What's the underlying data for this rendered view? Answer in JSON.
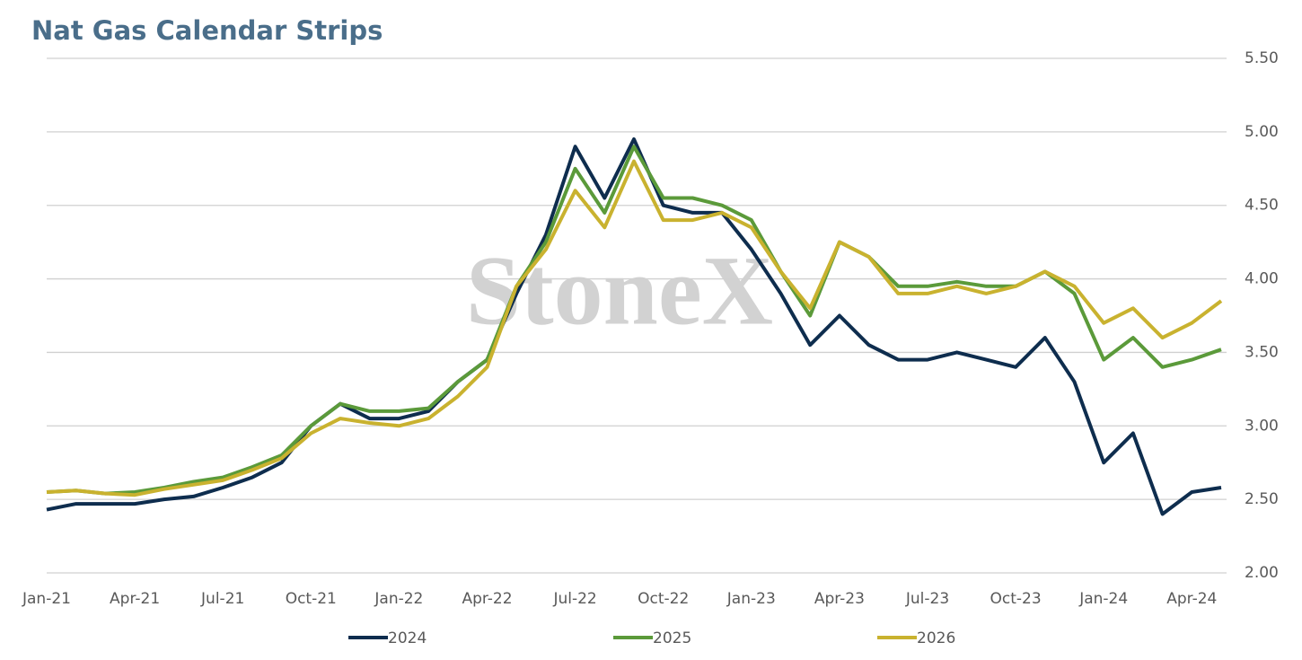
{
  "chart_data": {
    "type": "line",
    "title": "Nat Gas Calendar Strips",
    "watermark": "StoneX",
    "categories": [
      "Jan-21",
      null,
      null,
      "Apr-21",
      null,
      null,
      "Jul-21",
      null,
      null,
      "Oct-21",
      null,
      null,
      "Jan-22",
      null,
      null,
      "Apr-22",
      null,
      null,
      "Jul-22",
      null,
      null,
      "Oct-22",
      null,
      null,
      "Jan-23",
      null,
      null,
      "Apr-23",
      null,
      null,
      "Jul-23",
      null,
      null,
      "Oct-23",
      null,
      null,
      "Jan-24",
      null,
      null,
      "Apr-24",
      null
    ],
    "series": [
      {
        "name": "2024",
        "color": "#0e2d4e",
        "values": [
          2.43,
          2.47,
          2.47,
          2.47,
          2.5,
          2.52,
          2.58,
          2.65,
          2.75,
          3.0,
          3.15,
          3.05,
          3.05,
          3.1,
          3.3,
          3.45,
          3.9,
          4.3,
          4.9,
          4.55,
          4.95,
          4.5,
          4.45,
          4.45,
          4.2,
          3.9,
          3.55,
          3.75,
          3.55,
          3.45,
          3.45,
          3.5,
          3.45,
          3.4,
          3.6,
          3.3,
          2.75,
          2.95,
          2.4,
          2.55,
          2.58
        ]
      },
      {
        "name": "2025",
        "color": "#5b9a3a",
        "values": [
          2.55,
          2.56,
          2.54,
          2.55,
          2.58,
          2.62,
          2.65,
          2.72,
          2.8,
          3.0,
          3.15,
          3.1,
          3.1,
          3.12,
          3.3,
          3.45,
          3.95,
          4.25,
          4.75,
          4.45,
          4.9,
          4.55,
          4.55,
          4.5,
          4.4,
          4.05,
          3.75,
          4.25,
          4.15,
          3.95,
          3.95,
          3.98,
          3.95,
          3.95,
          4.05,
          3.9,
          3.45,
          3.6,
          3.4,
          3.45,
          3.52
        ]
      },
      {
        "name": "2026",
        "color": "#c9b22f",
        "values": [
          2.55,
          2.56,
          2.54,
          2.53,
          2.57,
          2.6,
          2.63,
          2.7,
          2.78,
          2.95,
          3.05,
          3.02,
          3.0,
          3.05,
          3.2,
          3.4,
          3.95,
          4.2,
          4.6,
          4.35,
          4.8,
          4.4,
          4.4,
          4.45,
          4.35,
          4.05,
          3.8,
          4.25,
          4.15,
          3.9,
          3.9,
          3.95,
          3.9,
          3.95,
          4.05,
          3.95,
          3.7,
          3.8,
          3.6,
          3.7,
          3.85
        ]
      }
    ],
    "ylim": [
      2.0,
      5.5
    ],
    "yticks": [
      {
        "value": 2.0,
        "label": "2.00"
      },
      {
        "value": 2.5,
        "label": "2.50"
      },
      {
        "value": 3.0,
        "label": "3.00"
      },
      {
        "value": 3.5,
        "label": "3.50"
      },
      {
        "value": 4.0,
        "label": "4.00"
      },
      {
        "value": 4.5,
        "label": "4.50"
      },
      {
        "value": 5.0,
        "label": "5.00"
      },
      {
        "value": 5.5,
        "label": "5.50"
      }
    ],
    "grid": true,
    "legend": "bottom"
  }
}
